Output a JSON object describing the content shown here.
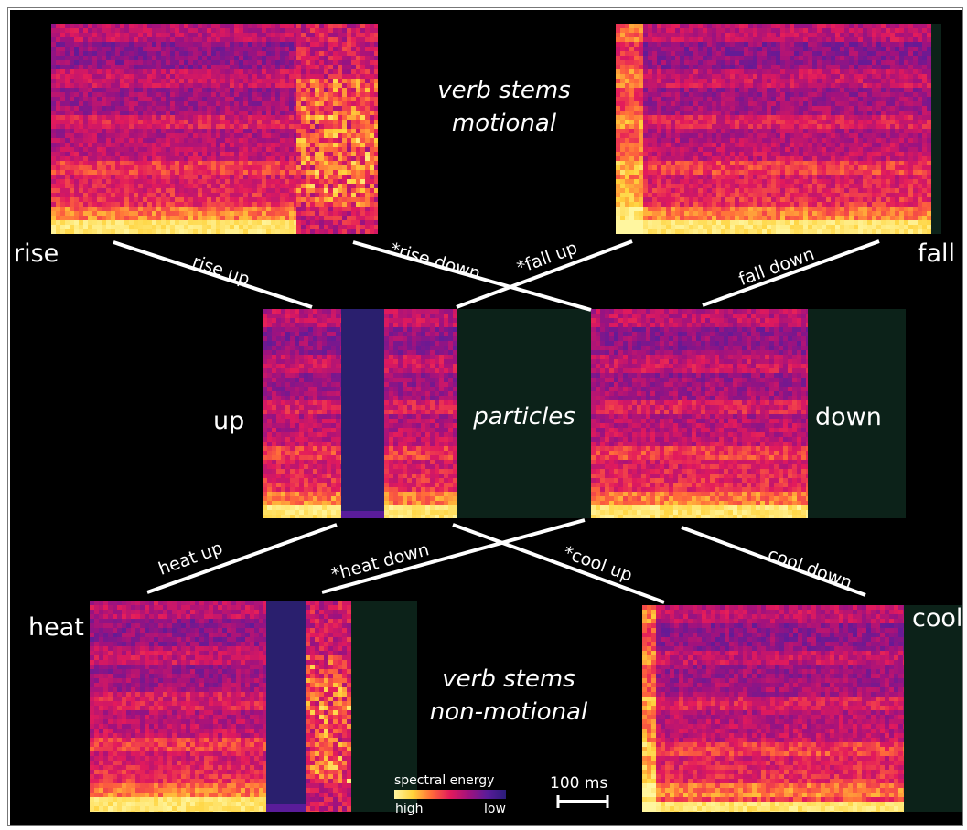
{
  "labels": {
    "verb_stems_motional": [
      "verb stems",
      "motional"
    ],
    "verb_stems_non_motional": [
      "verb stems",
      "non-motional"
    ],
    "particles": "particles",
    "rise": "rise",
    "fall": "fall",
    "up": "up",
    "down": "down",
    "heat": "heat",
    "cool": "cool"
  },
  "connectors": {
    "rise_up": "rise up",
    "rise_down": "*rise down",
    "fall_up": "*fall up",
    "fall_down": "fall down",
    "heat_up": "heat up",
    "heat_down": "*heat down",
    "cool_up": "*cool up",
    "cool_down": "cool down"
  },
  "legend": {
    "title": "spectral energy",
    "high": "high",
    "low": "low",
    "gradient": [
      "#fff6a0",
      "#ffd23a",
      "#ff6a3a",
      "#e21a5c",
      "#a0127e",
      "#5a1c9a",
      "#2a1c7a"
    ]
  },
  "scale_bar": {
    "label": "100 ms"
  },
  "colors": {
    "background": "#000000",
    "silence": "#0c2219",
    "lines": "#ffffff"
  },
  "spectrograms": [
    {
      "name": "spectrogram-rise",
      "word": "rise"
    },
    {
      "name": "spectrogram-fall",
      "word": "fall"
    },
    {
      "name": "spectrogram-up",
      "word": "up"
    },
    {
      "name": "spectrogram-down",
      "word": "down"
    },
    {
      "name": "spectrogram-heat",
      "word": "heat"
    },
    {
      "name": "spectrogram-cool",
      "word": "cool"
    }
  ]
}
